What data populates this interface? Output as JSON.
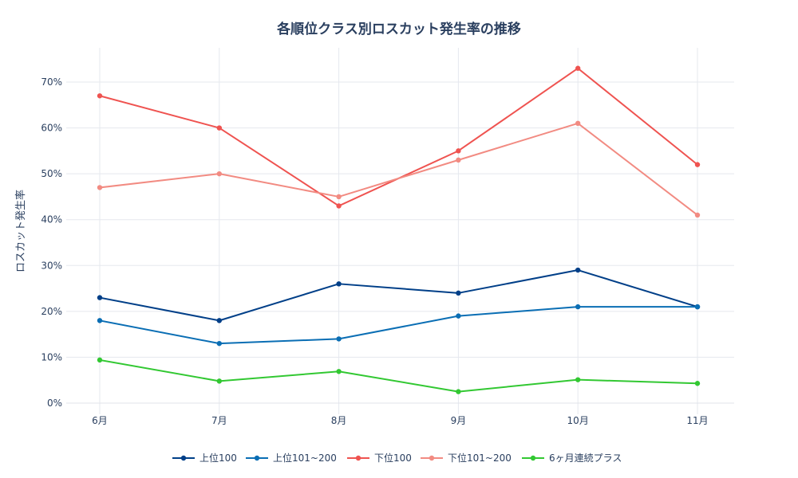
{
  "chart_data": {
    "type": "line",
    "title": "各順位クラス別ロスカット発生率の推移",
    "xlabel": "",
    "ylabel": "ロスカット発生率",
    "categories": [
      "6月",
      "7月",
      "8月",
      "9月",
      "10月",
      "11月"
    ],
    "ylim": [
      0,
      0.78
    ],
    "yticks": [
      0,
      0.1,
      0.2,
      0.3,
      0.4,
      0.5,
      0.6,
      0.7
    ],
    "ytick_labels": [
      "0%",
      "10%",
      "20%",
      "30%",
      "40%",
      "50%",
      "60%",
      "70%"
    ],
    "grid": true,
    "legend_position": "bottom-center",
    "series": [
      {
        "name": "上位100",
        "color": "#003f88",
        "values": [
          0.23,
          0.18,
          0.26,
          0.24,
          0.29,
          0.21
        ]
      },
      {
        "name": "上位101~200",
        "color": "#0a6eb4",
        "values": [
          0.18,
          0.13,
          0.14,
          0.19,
          0.21,
          0.21
        ]
      },
      {
        "name": "下位100",
        "color": "#ef5350",
        "values": [
          0.67,
          0.6,
          0.43,
          0.55,
          0.73,
          0.52
        ]
      },
      {
        "name": "下位101~200",
        "color": "#f28b82",
        "values": [
          0.47,
          0.5,
          0.45,
          0.53,
          0.61,
          0.41
        ]
      },
      {
        "name": "6ヶ月連続プラス",
        "color": "#32c832",
        "values": [
          0.094,
          0.048,
          0.069,
          0.025,
          0.051,
          0.043
        ]
      }
    ]
  }
}
